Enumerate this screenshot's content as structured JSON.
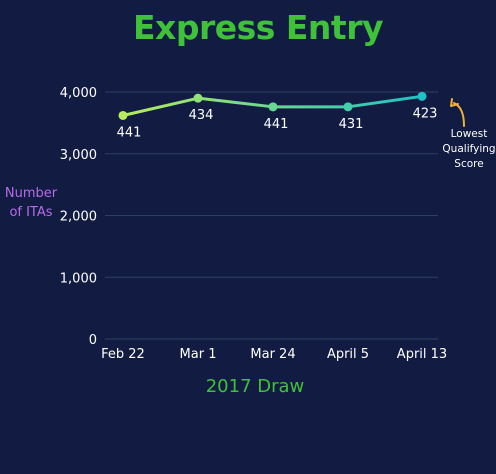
{
  "title": "Express Entry",
  "chart_data": {
    "type": "line",
    "categories": [
      "Feb 22",
      "Mar 1",
      "Mar 24",
      "April 5",
      "April 13"
    ],
    "series": [
      {
        "values": [
          3620,
          3900,
          3760,
          3760,
          3930
        ],
        "data_labels": [
          "441",
          "434",
          "441",
          "431",
          "423"
        ]
      }
    ],
    "ylabel_line1": "Number",
    "ylabel_line2": "of  ITAs",
    "xlabel": "2017 Draw",
    "yticks": [
      0,
      1000,
      2000,
      3000,
      4000
    ],
    "ytick_labels": [
      "0",
      "1,000",
      "2,000",
      "3,000",
      "4,000"
    ],
    "ylim": [
      0,
      4000
    ],
    "grid": true,
    "annotation": {
      "line1": "Lowest",
      "line2": "Qualifying",
      "line3": "Score"
    },
    "colors": {
      "line_start": "#b6ec5e",
      "line_end": "#1fc2c5",
      "grid": "#2f3f63",
      "arrow": "#f2b035",
      "text": "#ffffff"
    }
  }
}
